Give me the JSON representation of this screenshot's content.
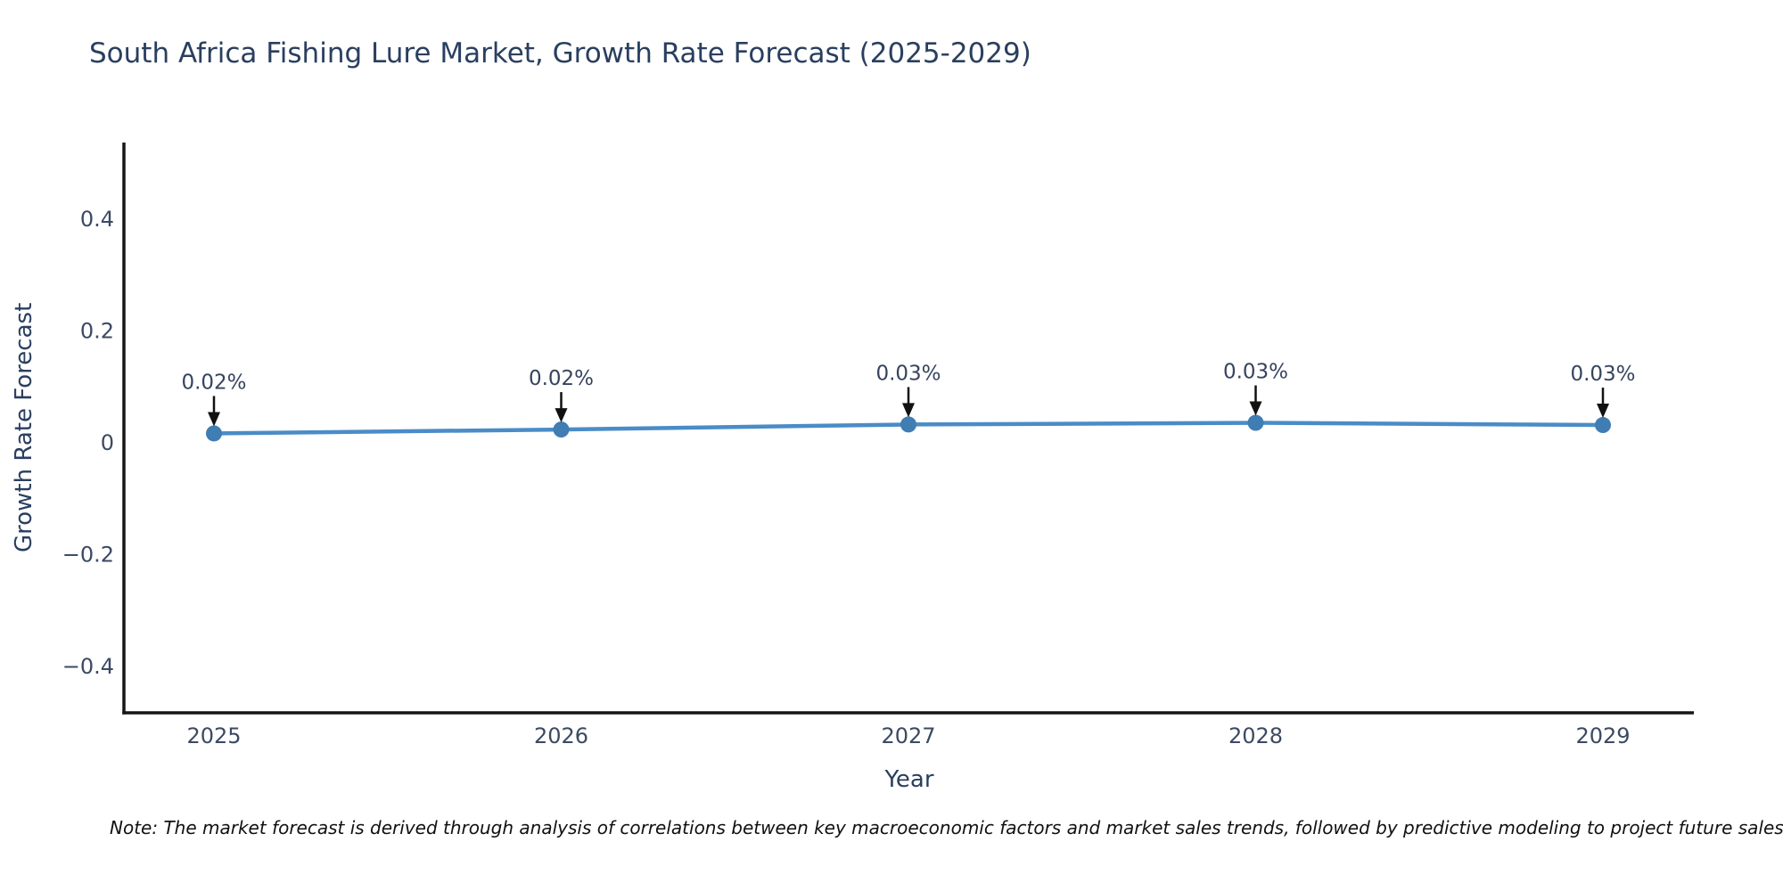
{
  "chart": {
    "title": "South Africa Fishing Lure Market, Growth Rate Forecast (2025-2029)",
    "xlabel": "Year",
    "ylabel": "Growth Rate Forecast",
    "note": "Note: The market forecast is derived through analysis of correlations between key macroeconomic factors and market sales trends, followed by predictive modeling to project future sales"
  },
  "chart_data": {
    "type": "line",
    "title": "South Africa Fishing Lure Market, Growth Rate Forecast (2025-2029)",
    "xlabel": "Year",
    "ylabel": "Growth Rate Forecast",
    "categories": [
      2025,
      2026,
      2027,
      2028,
      2029
    ],
    "series": [
      {
        "name": "Growth Rate Forecast",
        "values": [
          0.016,
          0.023,
          0.032,
          0.035,
          0.031
        ],
        "point_labels": [
          "0.02%",
          "0.02%",
          "0.03%",
          "0.03%",
          "0.03%"
        ]
      }
    ],
    "yticks": [
      0.4,
      0.2,
      0,
      -0.2,
      -0.4
    ],
    "ylim": [
      -0.48,
      0.54
    ],
    "grid": false,
    "legend": false,
    "annotation_style": "label-above-with-down-arrow",
    "colors": {
      "line": "#4a8cc7",
      "marker": "#3f7db3",
      "axis": "#161616",
      "title_text": "#2a3f5f",
      "tick_text": "#3b4a63",
      "annotation_text": "#37445f",
      "arrow": "#111111"
    }
  }
}
